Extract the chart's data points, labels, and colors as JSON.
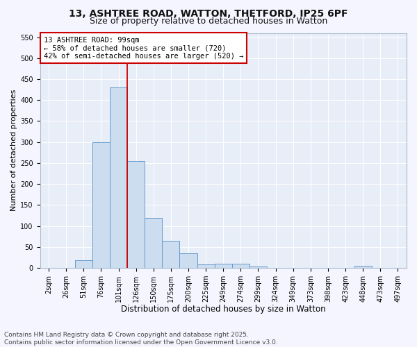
{
  "title_line1": "13, ASHTREE ROAD, WATTON, THETFORD, IP25 6PF",
  "title_line2": "Size of property relative to detached houses in Watton",
  "xlabel": "Distribution of detached houses by size in Watton",
  "ylabel": "Number of detached properties",
  "bin_labels": [
    "2sqm",
    "26sqm",
    "51sqm",
    "76sqm",
    "101sqm",
    "126sqm",
    "150sqm",
    "175sqm",
    "200sqm",
    "225sqm",
    "249sqm",
    "274sqm",
    "299sqm",
    "324sqm",
    "349sqm",
    "373sqm",
    "398sqm",
    "423sqm",
    "448sqm",
    "473sqm",
    "497sqm"
  ],
  "bar_heights": [
    0,
    0,
    18,
    300,
    430,
    255,
    120,
    65,
    35,
    8,
    10,
    10,
    4,
    0,
    0,
    0,
    0,
    0,
    5,
    0,
    0
  ],
  "bar_color": "#ccddf0",
  "bar_edge_color": "#6699cc",
  "vline_color": "#cc0000",
  "vline_x": 4.5,
  "annotation_line1": "13 ASHTREE ROAD: 99sqm",
  "annotation_line2": "← 58% of detached houses are smaller (720)",
  "annotation_line3": "42% of semi-detached houses are larger (520) →",
  "annotation_box_facecolor": "#ffffff",
  "annotation_box_edgecolor": "#cc0000",
  "ylim": [
    0,
    560
  ],
  "yticks": [
    0,
    50,
    100,
    150,
    200,
    250,
    300,
    350,
    400,
    450,
    500,
    550
  ],
  "axes_bg_color": "#e8eef8",
  "fig_bg_color": "#f5f5ff",
  "footer_line1": "Contains HM Land Registry data © Crown copyright and database right 2025.",
  "footer_line2": "Contains public sector information licensed under the Open Government Licence v3.0.",
  "title_fontsize": 10,
  "subtitle_fontsize": 9,
  "xlabel_fontsize": 8.5,
  "ylabel_fontsize": 8,
  "tick_fontsize": 7,
  "footer_fontsize": 6.5,
  "annotation_fontsize": 7.5
}
